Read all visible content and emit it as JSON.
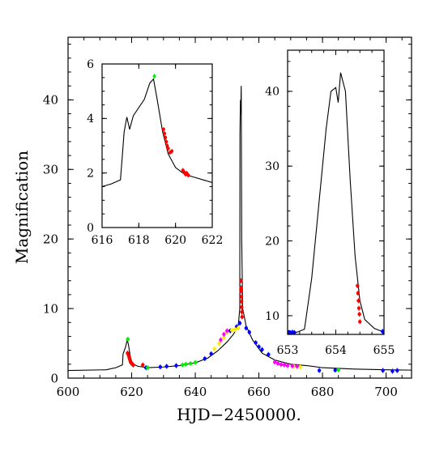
{
  "chart_data": [
    {
      "type": "line",
      "xlabel": "HJD−2450000.",
      "ylabel": "Magnification",
      "xlim": [
        600,
        708
      ],
      "ylim": [
        0,
        49
      ],
      "x_ticks": [
        600,
        620,
        640,
        660,
        680,
        700
      ],
      "y_ticks": [
        0,
        10,
        20,
        30,
        40
      ],
      "grid": false,
      "model_curve": {
        "x": [
          600,
          612,
          615,
          617.1,
          617.3,
          617.7,
          618.1,
          618.6,
          619.0,
          619.5,
          620,
          621,
          622,
          625,
          630,
          635,
          640,
          644,
          647,
          650,
          652,
          653.5,
          654.0,
          654.05,
          654.2,
          654.3,
          654.45,
          654.6,
          654.9,
          656,
          658,
          661,
          665,
          670,
          675,
          680,
          690,
          700,
          708
        ],
        "y": [
          1.1,
          1.2,
          1.5,
          1.9,
          3.5,
          4.0,
          4.5,
          5.5,
          4.8,
          3.3,
          2.4,
          1.9,
          1.7,
          1.5,
          1.6,
          1.8,
          2.2,
          2.9,
          3.9,
          5.2,
          6.3,
          7.5,
          10,
          35,
          40,
          38,
          42,
          20,
          10,
          7.5,
          5.5,
          3.6,
          2.6,
          2.0,
          1.8,
          1.5,
          1.3,
          1.2,
          1.15
        ]
      },
      "series": [
        {
          "color": "#ff0000",
          "x": [
            618.7,
            619.0,
            619.2,
            619.4,
            619.6,
            619.8,
            620.2,
            620.5,
            623.5,
            654.35,
            654.4,
            654.45,
            654.5,
            654.55,
            654.6,
            654.65,
            654.7
          ],
          "y": [
            3.6,
            3.3,
            3.0,
            2.7,
            2.4,
            2.2,
            2.0,
            1.9,
            1.9,
            14,
            13,
            12.5,
            11.7,
            11,
            10.2,
            9.5,
            8.8
          ]
        },
        {
          "color": "#0000ff",
          "x": [
            624.5,
            629,
            631,
            634,
            643,
            645,
            651,
            653,
            654,
            656,
            657,
            659,
            660,
            661,
            663,
            679,
            684,
            699,
            702,
            703.5
          ],
          "y": [
            1.5,
            1.6,
            1.7,
            1.8,
            2.8,
            3.5,
            6.8,
            7.4,
            7.9,
            7.2,
            6.6,
            5.1,
            4.5,
            4.1,
            3.4,
            1.1,
            1.15,
            1.1,
            1.0,
            1.1
          ]
        },
        {
          "color": "#00ee00",
          "x": [
            618.8,
            625,
            636,
            637,
            638.5,
            640,
            685
          ],
          "y": [
            5.6,
            1.5,
            1.9,
            2.0,
            2.1,
            2.25,
            1.2
          ]
        },
        {
          "color": "#ffee00",
          "x": [
            646,
            647.5,
            649,
            650,
            651.5,
            652.5,
            653.5,
            671,
            673
          ],
          "y": [
            4.2,
            5.0,
            5.8,
            6.6,
            6.9,
            7.0,
            7.2,
            1.7,
            1.6
          ]
        },
        {
          "color": "#ff00ff",
          "x": [
            648,
            649,
            650,
            665,
            666,
            667,
            668,
            669,
            670.5,
            672
          ],
          "y": [
            5.5,
            6.3,
            6.8,
            2.3,
            2.1,
            1.95,
            1.9,
            1.8,
            1.75,
            1.7
          ]
        }
      ]
    },
    {
      "type": "line",
      "xlim": [
        616,
        622
      ],
      "ylim": [
        0,
        6
      ],
      "x_ticks": [
        616,
        618,
        620,
        622
      ],
      "y_ticks": [
        0,
        2,
        4,
        6
      ],
      "model_curve": {
        "x": [
          616,
          616.5,
          617.0,
          617.1,
          617.2,
          617.35,
          617.5,
          617.7,
          618.0,
          618.3,
          618.6,
          618.8,
          619.0,
          619.3,
          619.6,
          620.0,
          620.5,
          621.0,
          622
        ],
        "y": [
          1.5,
          1.6,
          1.75,
          2.6,
          3.5,
          4.05,
          3.6,
          4.1,
          4.4,
          4.7,
          5.3,
          5.45,
          4.7,
          3.5,
          2.7,
          2.2,
          1.95,
          1.85,
          1.65
        ]
      },
      "series": [
        {
          "color": "#ff0000",
          "x": [
            619.35,
            619.4,
            619.45,
            619.5,
            619.55,
            619.6,
            619.7,
            619.8,
            620.4,
            620.45,
            620.5,
            620.55,
            620.6,
            620.65,
            620.7
          ],
          "y": [
            3.6,
            3.45,
            3.3,
            3.15,
            3.0,
            2.9,
            2.75,
            2.8,
            2.1,
            2.05,
            2.0,
            1.95,
            2.0,
            1.95,
            1.92
          ]
        },
        {
          "color": "#00ee00",
          "x": [
            618.85
          ],
          "y": [
            5.55
          ]
        }
      ]
    },
    {
      "type": "line",
      "xlim": [
        653,
        655
      ],
      "ylim": [
        7.5,
        45.5
      ],
      "x_ticks": [
        653,
        654,
        655
      ],
      "y_ticks": [
        10,
        20,
        30,
        40
      ],
      "model_curve": {
        "x": [
          653,
          653.2,
          653.35,
          653.5,
          653.65,
          653.8,
          653.9,
          654.0,
          654.05,
          654.1,
          654.2,
          654.3,
          654.4,
          654.5,
          654.6,
          654.8,
          655
        ],
        "y": [
          7.7,
          7.8,
          8.2,
          15,
          25,
          35,
          40,
          40.5,
          38.5,
          42.5,
          40,
          28,
          18,
          12,
          9.5,
          8.3,
          7.8
        ]
      },
      "series": [
        {
          "color": "#0000ff",
          "x": [
            653.0,
            653.03,
            653.06,
            653.1,
            653.14,
            654.97,
            655.0
          ],
          "y": [
            7.7,
            7.75,
            7.7,
            7.8,
            7.75,
            7.9,
            7.7
          ]
        },
        {
          "color": "#ff0000",
          "x": [
            654.45,
            654.46,
            654.47,
            654.48,
            654.49,
            654.5
          ],
          "y": [
            14,
            13,
            12,
            11,
            10.2,
            9.2
          ]
        }
      ]
    }
  ]
}
